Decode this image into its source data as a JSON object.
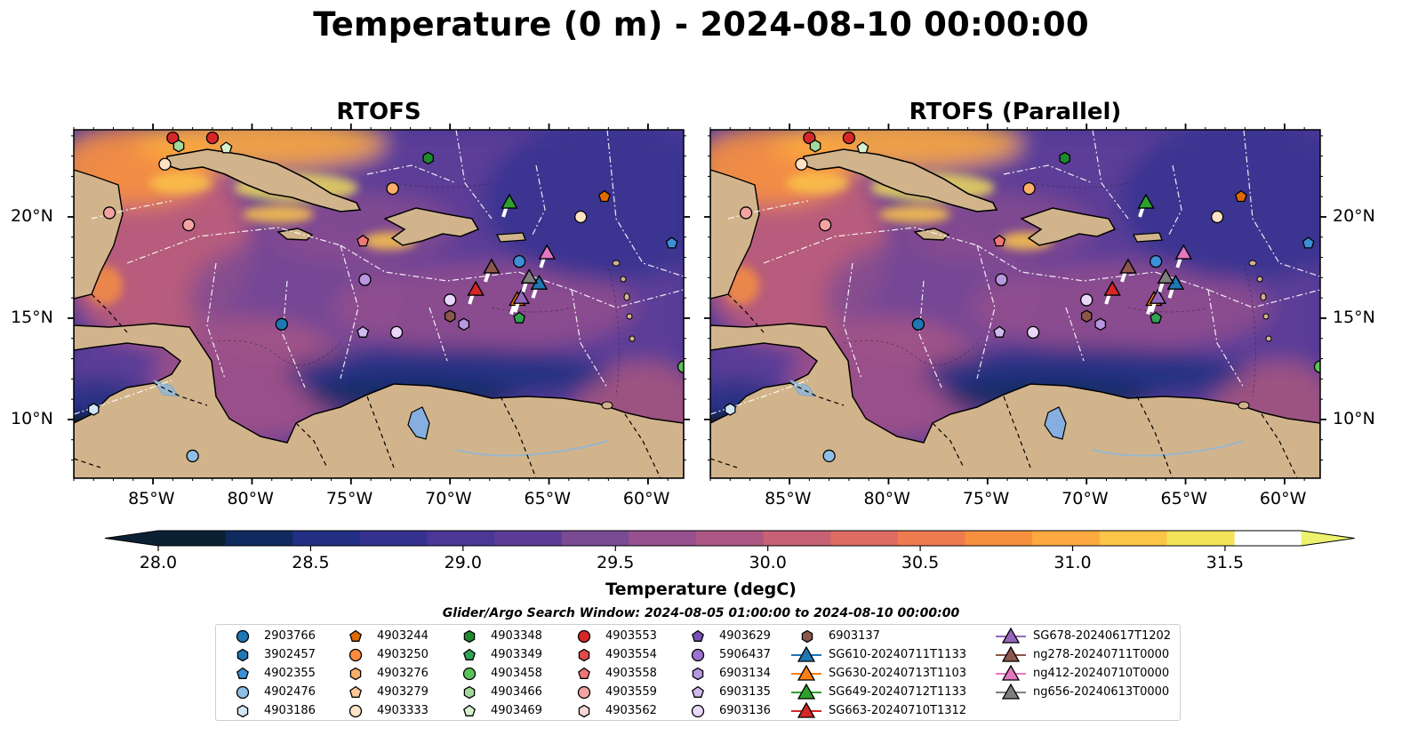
{
  "title": "Temperature (0 m) - 2024-08-10 00:00:00",
  "panels": [
    {
      "title": "RTOFS"
    },
    {
      "title": "RTOFS (Parallel)"
    }
  ],
  "axes": {
    "lon_labels": [
      "85°W",
      "80°W",
      "75°W",
      "70°W",
      "65°W",
      "60°W"
    ],
    "lon_values": [
      -85,
      -80,
      -75,
      -70,
      -65,
      -60
    ],
    "lat_labels": [
      "20°N",
      "15°N",
      "10°N"
    ],
    "lat_values": [
      20,
      15,
      10
    ],
    "lon_range": [
      -89,
      -58.2
    ],
    "lat_range": [
      7.1,
      24.3
    ]
  },
  "colorbar": {
    "ticks": [
      "28.0",
      "28.5",
      "29.0",
      "29.5",
      "30.0",
      "30.5",
      "31.0",
      "31.5"
    ],
    "range": [
      28.0,
      31.75
    ],
    "step": 0.25,
    "label": "Temperature (degC)",
    "colors": [
      "#0b2033",
      "#0f2a5e",
      "#232f83",
      "#35338f",
      "#4a3796",
      "#5c3c97",
      "#7a4a93",
      "#96508d",
      "#ad5784",
      "#c76175",
      "#de6c63",
      "#ef7c50",
      "#f8913f",
      "#fcaa3f",
      "#fbc54a",
      "#f2e35b",
      "#ecf26d"
    ]
  },
  "search_window": "Glider/Argo Search Window: 2024-08-05 01:00:00 to 2024-08-10 00:00:00",
  "legend": {
    "columns": [
      [
        {
          "label": "2903766",
          "shape": "circle",
          "color": "#1f77b4"
        },
        {
          "label": "3902457",
          "shape": "hexagon",
          "color": "#1f77b4"
        },
        {
          "label": "4902355",
          "shape": "pentagon",
          "color": "#3d8fd6"
        },
        {
          "label": "4902476",
          "shape": "circle",
          "color": "#8fbfe6"
        },
        {
          "label": "4903186",
          "shape": "hexagon",
          "color": "#cfe6f8"
        }
      ],
      [
        {
          "label": "4903244",
          "shape": "pentagon",
          "color": "#e06a00"
        },
        {
          "label": "4903250",
          "shape": "circle",
          "color": "#fd8d3c"
        },
        {
          "label": "4903276",
          "shape": "hexagon",
          "color": "#fdae6b"
        },
        {
          "label": "4903279",
          "shape": "pentagon",
          "color": "#fdc897"
        },
        {
          "label": "4903333",
          "shape": "circle",
          "color": "#fde2c4"
        }
      ],
      [
        {
          "label": "4903348",
          "shape": "hexagon",
          "color": "#1e8a2e"
        },
        {
          "label": "4903349",
          "shape": "pentagon",
          "color": "#31a354"
        },
        {
          "label": "4903458",
          "shape": "circle",
          "color": "#5cc25c"
        },
        {
          "label": "4903466",
          "shape": "hexagon",
          "color": "#a1d99b"
        },
        {
          "label": "4903469",
          "shape": "pentagon",
          "color": "#d7f0cf"
        }
      ],
      [
        {
          "label": "4903553",
          "shape": "circle",
          "color": "#d62728"
        },
        {
          "label": "4903554",
          "shape": "hexagon",
          "color": "#e34a4a"
        },
        {
          "label": "4903558",
          "shape": "pentagon",
          "color": "#f07676"
        },
        {
          "label": "4903559",
          "shape": "circle",
          "color": "#f4a3a3"
        },
        {
          "label": "4903562",
          "shape": "hexagon",
          "color": "#fbd6d6"
        }
      ],
      [
        {
          "label": "4903629",
          "shape": "pentagon",
          "color": "#7b4fb8"
        },
        {
          "label": "5906437",
          "shape": "circle",
          "color": "#9e72d0"
        },
        {
          "label": "6903134",
          "shape": "hexagon",
          "color": "#b896e0"
        },
        {
          "label": "6903135",
          "shape": "pentagon",
          "color": "#d0baf0"
        },
        {
          "label": "6903136",
          "shape": "circle",
          "color": "#ead8fb"
        }
      ],
      [
        {
          "label": "6903137",
          "shape": "hexagon",
          "color": "#8c564b"
        },
        {
          "label": "SG610-20240711T1133",
          "shape": "triangle-line",
          "color": "#1f77b4"
        },
        {
          "label": "SG630-20240713T1103",
          "shape": "triangle-line",
          "color": "#ff7f0e"
        },
        {
          "label": "SG649-20240712T1133",
          "shape": "triangle-line",
          "color": "#2ca02c"
        },
        {
          "label": "SG663-20240710T1312",
          "shape": "triangle-line",
          "color": "#d62728"
        }
      ],
      [
        {
          "label": "SG678-20240617T1202",
          "shape": "triangle-line",
          "color": "#9467bd"
        },
        {
          "label": "ng278-20240711T0000",
          "shape": "triangle-line",
          "color": "#8c564b"
        },
        {
          "label": "ng412-20240710T0000",
          "shape": "triangle-line",
          "color": "#e377c2"
        },
        {
          "label": "ng656-20240613T0000",
          "shape": "triangle-line",
          "color": "#7f7f7f"
        }
      ]
    ]
  },
  "markers": [
    {
      "lon": -84.0,
      "lat": 23.9,
      "shape": "circle",
      "color": "#d62728"
    },
    {
      "lon": -83.7,
      "lat": 23.5,
      "shape": "hexagon",
      "color": "#a1d99b"
    },
    {
      "lon": -82.0,
      "lat": 23.9,
      "shape": "circle",
      "color": "#d62728"
    },
    {
      "lon": -81.3,
      "lat": 23.4,
      "shape": "pentagon",
      "color": "#d7f0cf"
    },
    {
      "lon": -84.4,
      "lat": 22.6,
      "shape": "circle",
      "color": "#fde2c4"
    },
    {
      "lon": -87.2,
      "lat": 20.2,
      "shape": "circle",
      "color": "#f4a3a3"
    },
    {
      "lon": -83.2,
      "lat": 19.6,
      "shape": "circle",
      "color": "#f4a3a3"
    },
    {
      "lon": -72.9,
      "lat": 21.4,
      "shape": "circle",
      "color": "#fdae6b"
    },
    {
      "lon": -71.1,
      "lat": 22.9,
      "shape": "hexagon",
      "color": "#1e8a2e"
    },
    {
      "lon": -74.4,
      "lat": 18.8,
      "shape": "pentagon",
      "color": "#f07676"
    },
    {
      "lon": -74.3,
      "lat": 16.9,
      "shape": "circle",
      "color": "#b896e0"
    },
    {
      "lon": -74.4,
      "lat": 14.3,
      "shape": "pentagon",
      "color": "#d0baf0"
    },
    {
      "lon": -72.7,
      "lat": 14.3,
      "shape": "circle",
      "color": "#ead8fb"
    },
    {
      "lon": -78.5,
      "lat": 14.7,
      "shape": "circle",
      "color": "#1f77b4"
    },
    {
      "lon": -70.0,
      "lat": 15.9,
      "shape": "circle",
      "color": "#ead8fb"
    },
    {
      "lon": -70.0,
      "lat": 15.1,
      "shape": "hexagon",
      "color": "#8c564b"
    },
    {
      "lon": -69.3,
      "lat": 14.7,
      "shape": "hexagon",
      "color": "#b896e0"
    },
    {
      "lon": -66.5,
      "lat": 17.8,
      "shape": "circle",
      "color": "#3d8fd6"
    },
    {
      "lon": -66.5,
      "lat": 15.0,
      "shape": "pentagon",
      "color": "#31a354"
    },
    {
      "lon": -63.4,
      "lat": 20.0,
      "shape": "circle",
      "color": "#fde2c4"
    },
    {
      "lon": -62.2,
      "lat": 21.0,
      "shape": "pentagon",
      "color": "#e06a00"
    },
    {
      "lon": -58.8,
      "lat": 18.7,
      "shape": "pentagon",
      "color": "#3d8fd6"
    },
    {
      "lon": -58.2,
      "lat": 12.6,
      "shape": "circle",
      "color": "#5cc25c"
    },
    {
      "lon": -88.0,
      "lat": 10.5,
      "shape": "hexagon",
      "color": "#cfe6f8"
    },
    {
      "lon": -83.0,
      "lat": 8.2,
      "shape": "circle",
      "color": "#8fbfe6"
    }
  ],
  "gliders": [
    {
      "lon": -67.0,
      "lat": 20.7,
      "color": "#2ca02c"
    },
    {
      "lon": -67.9,
      "lat": 17.5,
      "color": "#8c564b"
    },
    {
      "lon": -68.7,
      "lat": 16.4,
      "color": "#d62728"
    },
    {
      "lon": -66.6,
      "lat": 15.9,
      "color": "#ff7f0e"
    },
    {
      "lon": -66.4,
      "lat": 16.0,
      "color": "#9467bd"
    },
    {
      "lon": -65.1,
      "lat": 18.2,
      "color": "#e377c2"
    },
    {
      "lon": -65.5,
      "lat": 16.7,
      "color": "#1f77b4"
    },
    {
      "lon": -66.0,
      "lat": 17.0,
      "color": "#7f7f7f"
    }
  ]
}
